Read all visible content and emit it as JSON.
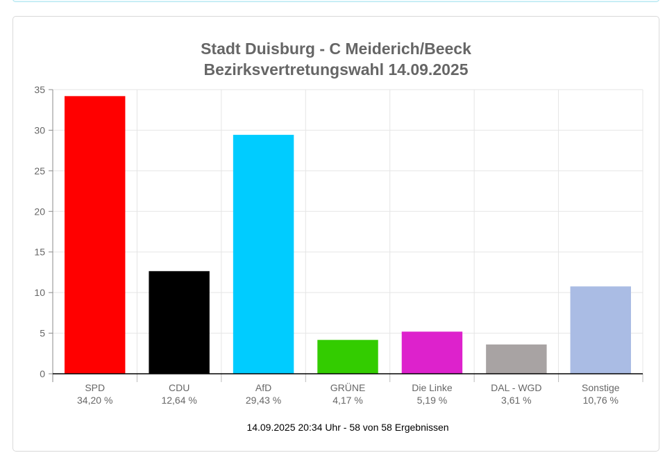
{
  "colors": {
    "banner_border": "#a9e4ef",
    "card_border": "#d9d9d9",
    "grid": "#e5e5e5",
    "axis": "#000000",
    "text": "#666666"
  },
  "chart_data": {
    "type": "bar",
    "title_lines": [
      "Stadt Duisburg - C Meiderich/Beeck",
      "Bezirksvertretungswahl 14.09.2025"
    ],
    "categories": [
      "SPD",
      "CDU",
      "AfD",
      "GRÜNE",
      "Die Linke",
      "DAL - WGD",
      "Sonstige"
    ],
    "value_labels": [
      "34,20 %",
      "12,64 %",
      "29,43 %",
      "4,17 %",
      "5,19 %",
      "3,61 %",
      "10,76 %"
    ],
    "values": [
      34.2,
      12.64,
      29.43,
      4.17,
      5.19,
      3.61,
      10.76
    ],
    "bar_colors": [
      "#ff0000",
      "#000000",
      "#00ccff",
      "#33cc00",
      "#dd22cc",
      "#a8a3a3",
      "#aabce4"
    ],
    "yticks": [
      0,
      5,
      10,
      15,
      20,
      25,
      30,
      35
    ],
    "ylim": [
      0,
      35
    ],
    "xlabel": "",
    "ylabel": "",
    "grid": true,
    "legend": "none",
    "footer": "14.09.2025 20:34 Uhr - 58 von 58 Ergebnissen"
  }
}
